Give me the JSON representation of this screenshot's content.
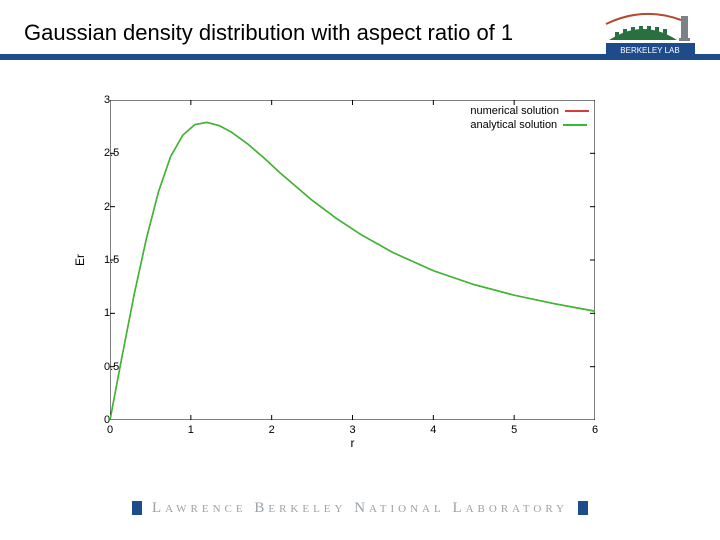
{
  "title": "Gaussian density distribution with aspect ratio of 1",
  "underline_color": "#1e4b8a",
  "logo": {
    "top_stroke": "#b24a2e",
    "building_fill": "#2a6f3f",
    "tower_fill": "#7a8288",
    "band_fill": "#1e4b8a",
    "band_text": "BERKELEY LAB",
    "band_text_color": "#ffffff"
  },
  "chart": {
    "type": "line",
    "xlabel": "r",
    "ylabel": "Er",
    "xlim": [
      0,
      6
    ],
    "ylim": [
      0,
      3
    ],
    "xticks": [
      0,
      1,
      2,
      3,
      4,
      5,
      6
    ],
    "yticks": [
      0,
      0.5,
      1,
      1.5,
      2,
      2.5,
      3
    ],
    "ytick_labels": [
      "0",
      "0.5",
      "1",
      "1.5",
      "2",
      "2.5",
      "3"
    ],
    "xtick_labels": [
      "0",
      "1",
      "2",
      "3",
      "4",
      "5",
      "6"
    ],
    "axis_color": "#000000",
    "tick_len": 5,
    "label_fontsize": 12,
    "tick_fontsize": 11,
    "background_color": "#ffffff",
    "series": [
      {
        "name": "numerical solution",
        "color": "#d83a3a",
        "width": 1.5,
        "x": [
          0,
          0.15,
          0.3,
          0.45,
          0.6,
          0.75,
          0.9,
          1.05,
          1.2,
          1.35,
          1.5,
          1.7,
          1.9,
          2.1,
          2.3,
          2.5,
          2.8,
          3.1,
          3.5,
          4.0,
          4.5,
          5.0,
          5.5,
          6.0
        ],
        "y": [
          0,
          0.6,
          1.18,
          1.7,
          2.14,
          2.47,
          2.67,
          2.77,
          2.79,
          2.76,
          2.7,
          2.59,
          2.46,
          2.32,
          2.19,
          2.06,
          1.89,
          1.74,
          1.57,
          1.4,
          1.27,
          1.17,
          1.09,
          1.02
        ]
      },
      {
        "name": "analytical solution",
        "color": "#2fbf2f",
        "width": 1.5,
        "x": [
          0,
          0.15,
          0.3,
          0.45,
          0.6,
          0.75,
          0.9,
          1.05,
          1.2,
          1.35,
          1.5,
          1.7,
          1.9,
          2.1,
          2.3,
          2.5,
          2.8,
          3.1,
          3.5,
          4.0,
          4.5,
          5.0,
          5.5,
          6.0
        ],
        "y": [
          0,
          0.6,
          1.18,
          1.7,
          2.14,
          2.47,
          2.67,
          2.77,
          2.79,
          2.76,
          2.7,
          2.59,
          2.46,
          2.32,
          2.19,
          2.06,
          1.89,
          1.74,
          1.57,
          1.4,
          1.27,
          1.17,
          1.09,
          1.02
        ]
      }
    ],
    "legend": {
      "position": "top-right",
      "fontsize": 11
    }
  },
  "footer": {
    "text": "Lawrence Berkeley National Laboratory",
    "text_color": "#9aa2a8",
    "bar_color": "#1e4b8a",
    "letter_spacing": 4
  }
}
